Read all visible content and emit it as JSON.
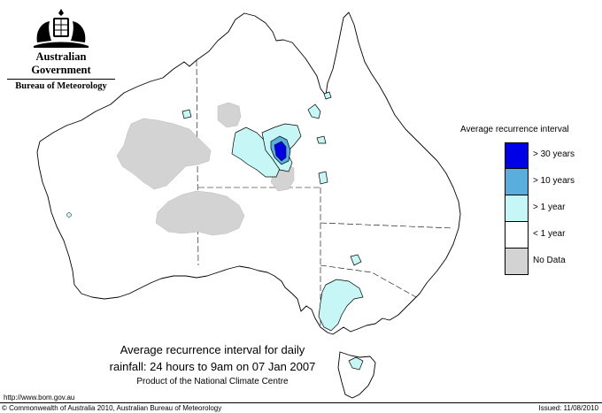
{
  "header": {
    "government": "Australian Government",
    "bureau": "Bureau of Meteorology"
  },
  "legend": {
    "title": "Average recurrence interval",
    "items": [
      {
        "label": "> 30 years",
        "color": "#0000e6"
      },
      {
        "label": "> 10 years",
        "color": "#5aaedd"
      },
      {
        "label": "> 1 year",
        "color": "#c6f6f6"
      },
      {
        "label": "< 1 year",
        "color": "#ffffff"
      },
      {
        "label": "No Data",
        "color": "#d3d3d3"
      }
    ]
  },
  "caption": {
    "line1": "Average recurrence interval for daily",
    "line2": "rainfall: 24 hours to 9am on 07 Jan 2007",
    "line3": "Product of the National Climate Centre"
  },
  "footer": {
    "url": "http://www.bom.gov.au",
    "copyright": "© Commonwealth of Australia 2010, Australian Bureau of Meteorology",
    "issued": "Issued: 11/08/2010"
  },
  "colors": {
    "no_data": "#d3d3d3",
    "above_1_year": "#c6f6f6",
    "above_10_years": "#5aaedd",
    "above_30_years": "#0000e6",
    "land": "#ffffff",
    "outline": "#000000"
  }
}
